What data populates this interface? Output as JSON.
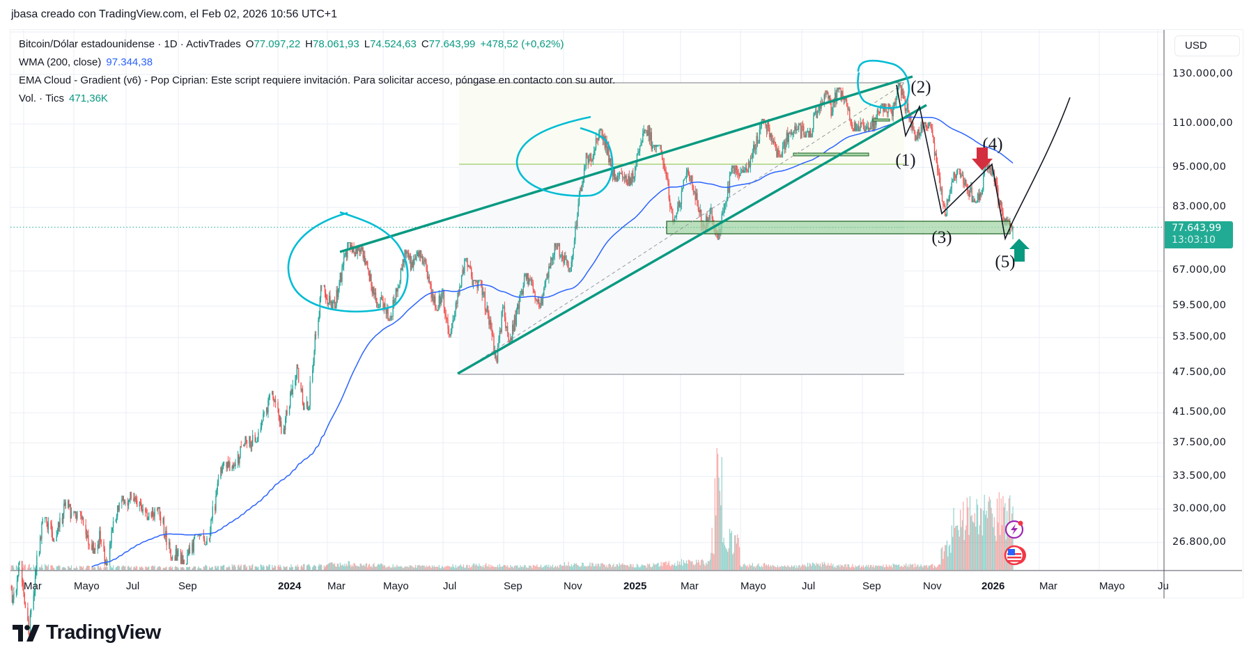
{
  "credit": "jbasa creado con TradingView.com, el Feb 02, 2026 10:56 UTC+1",
  "legend": {
    "symbol": "Bitcoin/Dólar estadounidense · 1D · ActivTrades",
    "o_label": "O",
    "o_value": "77.097,22",
    "h_label": "H",
    "h_value": "78.061,93",
    "l_label": "L",
    "l_value": "74.524,63",
    "c_label": "C",
    "c_value": "77.643,99",
    "change": "+478,52 (+0,62%)",
    "wma_label": "WMA (200, close)",
    "wma_value": "97.344,38",
    "ema_cloud": "EMA Cloud - Gradient (v6) - Pop Ciprian: Este script requiere invitación. Para solicitar acceso, póngase en contacto con su autor.",
    "vol_label": "Vol. · Tics",
    "vol_value": "471,36K"
  },
  "currency": "USD",
  "price_tag": {
    "price": "77.643,99",
    "countdown": "13:03:10"
  },
  "logo_text": "TradingView",
  "colors": {
    "up": "#26a69a",
    "down": "#ef5350",
    "wma": "#2962ff",
    "trendline": "#089981",
    "circle": "#00bcd4",
    "zone": "#a5d6a7",
    "arrow_down": "#d32f3f",
    "arrow_up": "#089981",
    "price_tag": "#22ab94"
  },
  "icons": {
    "events": "lightning-bolt-icon",
    "economic": "us-flag-icon",
    "logo": "tradingview-logo-icon"
  },
  "chart_data": {
    "type": "candlestick",
    "interval": "1D",
    "y_scale": "log",
    "ylim": [
      24000,
      150000
    ],
    "grid": true,
    "y_ticks": [
      "130.000,00",
      "110.000,00",
      "95.000,00",
      "83.000,00",
      "67.000,00",
      "59.500,00",
      "53.500,00",
      "47.500,00",
      "41.500,00",
      "37.500,00",
      "33.500,00",
      "30.000,00",
      "26.800,00"
    ],
    "y_tick_values": [
      130000,
      110000,
      95000,
      83000,
      67000,
      59500,
      53500,
      47500,
      41500,
      37500,
      33500,
      30000,
      26800
    ],
    "x_ticks": [
      {
        "label": "Mar",
        "date": "2023-03-01"
      },
      {
        "label": "Mayo",
        "date": "2023-05-01"
      },
      {
        "label": "Jul",
        "date": "2023-07-01"
      },
      {
        "label": "Sep",
        "date": "2023-09-01"
      },
      {
        "label": "2024",
        "date": "2024-01-01",
        "year": true
      },
      {
        "label": "Mar",
        "date": "2024-03-01"
      },
      {
        "label": "Mayo",
        "date": "2024-05-01"
      },
      {
        "label": "Jul",
        "date": "2024-07-01"
      },
      {
        "label": "Sep",
        "date": "2024-09-01"
      },
      {
        "label": "Nov",
        "date": "2024-11-01"
      },
      {
        "label": "2025",
        "date": "2025-01-01",
        "year": true
      },
      {
        "label": "Mar",
        "date": "2025-03-01"
      },
      {
        "label": "Mayo",
        "date": "2025-05-01"
      },
      {
        "label": "Jul",
        "date": "2025-07-01"
      },
      {
        "label": "Sep",
        "date": "2025-09-01"
      },
      {
        "label": "Nov",
        "date": "2025-11-01"
      },
      {
        "label": "2026",
        "date": "2026-01-01",
        "year": true
      },
      {
        "label": "Mar",
        "date": "2026-03-01"
      },
      {
        "label": "Mayo",
        "date": "2026-05-01"
      },
      {
        "label": "Ju",
        "date": "2026-07-01"
      }
    ],
    "ohlc_columns": [
      "month",
      "open",
      "high",
      "low",
      "close",
      "avg_volume_k"
    ],
    "ohlc_monthly": [
      [
        "2023-02",
        23100,
        25200,
        21400,
        23100,
        25
      ],
      [
        "2023-03",
        23100,
        29200,
        19600,
        28500,
        30
      ],
      [
        "2023-04",
        28500,
        31000,
        26900,
        29300,
        25
      ],
      [
        "2023-05",
        29300,
        29800,
        25800,
        27200,
        22
      ],
      [
        "2023-06",
        27200,
        31400,
        24800,
        30500,
        25
      ],
      [
        "2023-07",
        30500,
        31800,
        28900,
        29200,
        20
      ],
      [
        "2023-08",
        29200,
        30200,
        25200,
        26000,
        22
      ],
      [
        "2023-09",
        26000,
        27500,
        24900,
        27000,
        18
      ],
      [
        "2023-10",
        27000,
        35200,
        26600,
        34600,
        25
      ],
      [
        "2023-11",
        34600,
        38400,
        34100,
        37700,
        28
      ],
      [
        "2023-12",
        37700,
        44700,
        37600,
        42300,
        30
      ],
      [
        "2024-01",
        42300,
        48900,
        38600,
        42600,
        28
      ],
      [
        "2024-02",
        42600,
        63900,
        41900,
        61200,
        30
      ],
      [
        "2024-03",
        61200,
        73800,
        59000,
        71300,
        45
      ],
      [
        "2024-04",
        71300,
        72800,
        59200,
        60700,
        35
      ],
      [
        "2024-05",
        60700,
        72000,
        56600,
        67500,
        28
      ],
      [
        "2024-06",
        67500,
        71900,
        58500,
        62700,
        25
      ],
      [
        "2024-07",
        62700,
        70000,
        53500,
        64600,
        28
      ],
      [
        "2024-08",
        64600,
        65000,
        49000,
        58900,
        35
      ],
      [
        "2024-09",
        58900,
        66500,
        52600,
        63300,
        25
      ],
      [
        "2024-10",
        63300,
        73600,
        58900,
        70200,
        28
      ],
      [
        "2024-11",
        70200,
        99800,
        66800,
        96400,
        40
      ],
      [
        "2024-12",
        96400,
        108300,
        90500,
        93400,
        35
      ],
      [
        "2025-01",
        93400,
        109600,
        89200,
        102400,
        32
      ],
      [
        "2025-02",
        102400,
        102500,
        78200,
        84300,
        45
      ],
      [
        "2025-03",
        84300,
        95000,
        76600,
        82500,
        55
      ],
      [
        "2025-04",
        82500,
        95700,
        74400,
        94200,
        220
      ],
      [
        "2025-05",
        94200,
        111900,
        93300,
        104600,
        35
      ],
      [
        "2025-06",
        104600,
        110500,
        98200,
        107100,
        25
      ],
      [
        "2025-07",
        107100,
        123200,
        105100,
        115700,
        40
      ],
      [
        "2025-08",
        115700,
        124400,
        107300,
        108200,
        30
      ],
      [
        "2025-09",
        108200,
        117900,
        107200,
        114000,
        28
      ],
      [
        "2025-10",
        114000,
        126200,
        103500,
        109600,
        35
      ],
      [
        "2025-11",
        109600,
        110700,
        80600,
        90400,
        160
      ],
      [
        "2025-12",
        90400,
        94600,
        84400,
        87500,
        380
      ],
      [
        "2026-01",
        87500,
        97900,
        78000,
        78600,
        390
      ]
    ],
    "last_bar": {
      "open": 77097.22,
      "high": 78061.93,
      "low": 74524.63,
      "close": 77643.99,
      "volume_k": 471.36
    },
    "wma_period": 200,
    "wma_last": 97344.38,
    "annotations": {
      "wave_labels": [
        "(1)",
        "(2)",
        "(3)",
        "(4)",
        "(5)"
      ],
      "support_zone": [
        75500,
        79500
      ],
      "long_position": {
        "entry": 77643.99,
        "target": 126500,
        "stop": 47500
      }
    }
  }
}
